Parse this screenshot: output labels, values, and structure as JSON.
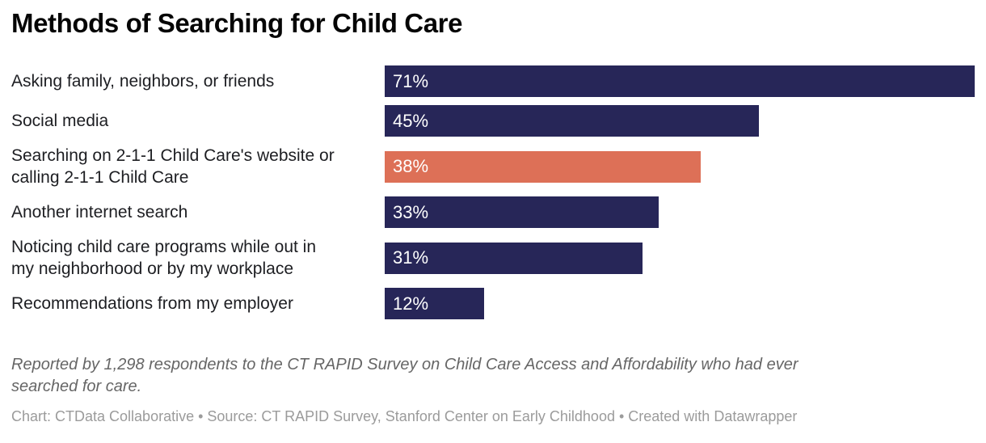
{
  "title": "Methods of Searching for Child Care",
  "chart_data": {
    "type": "bar",
    "orientation": "horizontal",
    "title": "Methods of Searching for Child Care",
    "categories": [
      "Asking family, neighbors, or friends",
      "Social media",
      "Searching on 2-1-1 Child Care's website or calling 2-1-1 Child Care",
      "Another internet search",
      "Noticing child care programs while out in my neighborhood or by my workplace",
      "Recommendations from my employer"
    ],
    "label_lines": [
      [
        "Asking family, neighbors, or friends"
      ],
      [
        "Social media"
      ],
      [
        "Searching on 2-1-1 Child Care's website or",
        "calling 2-1-1 Child Care"
      ],
      [
        "Another internet search"
      ],
      [
        "Noticing child care programs while out in",
        "my neighborhood or by my workplace"
      ],
      [
        "Recommendations from my employer"
      ]
    ],
    "values": [
      71,
      45,
      38,
      33,
      31,
      12
    ],
    "value_labels": [
      "71%",
      "45%",
      "38%",
      "33%",
      "31%",
      "12%"
    ],
    "highlight_index": 2,
    "xlim": [
      0,
      71
    ],
    "grid": false,
    "legend": "none",
    "value_label_position": "inside-start"
  },
  "colors": {
    "bar_default": "#272658",
    "bar_highlight": "#dd7057",
    "value_label": "#ffffff",
    "category_label": "#1d1e22",
    "title": "#050505",
    "notes": "#666666",
    "byline": "#9b9b9b",
    "background": "#ffffff"
  },
  "footer": {
    "notes": "Reported by 1,298 respondents to the CT RAPID Survey on Child Care Access and Affordability who had ever searched for care.",
    "notes_lines": [
      "Reported by 1,298 respondents to the CT RAPID Survey on Child Care Access and Affordability who had ever",
      "searched for care."
    ],
    "byline": "Chart: CTData Collaborative • Source: CT RAPID Survey, Stanford Center on Early Childhood • Created with Datawrapper"
  }
}
